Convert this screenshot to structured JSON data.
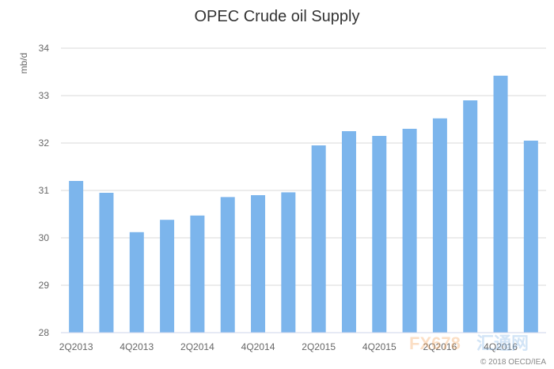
{
  "chart_data": {
    "type": "bar",
    "title": "OPEC Crude oil Supply",
    "xlabel": "",
    "ylabel": "mb/d",
    "ylim": [
      28,
      34
    ],
    "yticks": [
      28,
      29,
      30,
      31,
      32,
      33,
      34
    ],
    "categories": [
      "2Q2013",
      "3Q2013",
      "4Q2013",
      "1Q2014",
      "2Q2014",
      "3Q2014",
      "4Q2014",
      "1Q2015",
      "2Q2015",
      "3Q2015",
      "4Q2015",
      "1Q2016",
      "2Q2016",
      "3Q2016",
      "4Q2016",
      "1Q2017"
    ],
    "x_tick_labels": [
      "2Q2013",
      "",
      "4Q2013",
      "",
      "2Q2014",
      "",
      "4Q2014",
      "",
      "2Q2015",
      "",
      "4Q2015",
      "",
      "2Q2016",
      "",
      "4Q2016",
      ""
    ],
    "values": [
      31.2,
      30.95,
      30.12,
      30.38,
      30.47,
      30.86,
      30.9,
      30.96,
      31.95,
      32.25,
      32.15,
      32.3,
      32.52,
      32.9,
      33.42,
      32.05
    ],
    "color": "#7cb5ec",
    "grid": true,
    "legend": "none"
  },
  "credit": "© 2018 OECD/IEA",
  "watermark": {
    "text_a": "FX678",
    "text_b": "汇通网",
    "color_a": "#f4a259",
    "color_b": "#7fb3e6"
  }
}
